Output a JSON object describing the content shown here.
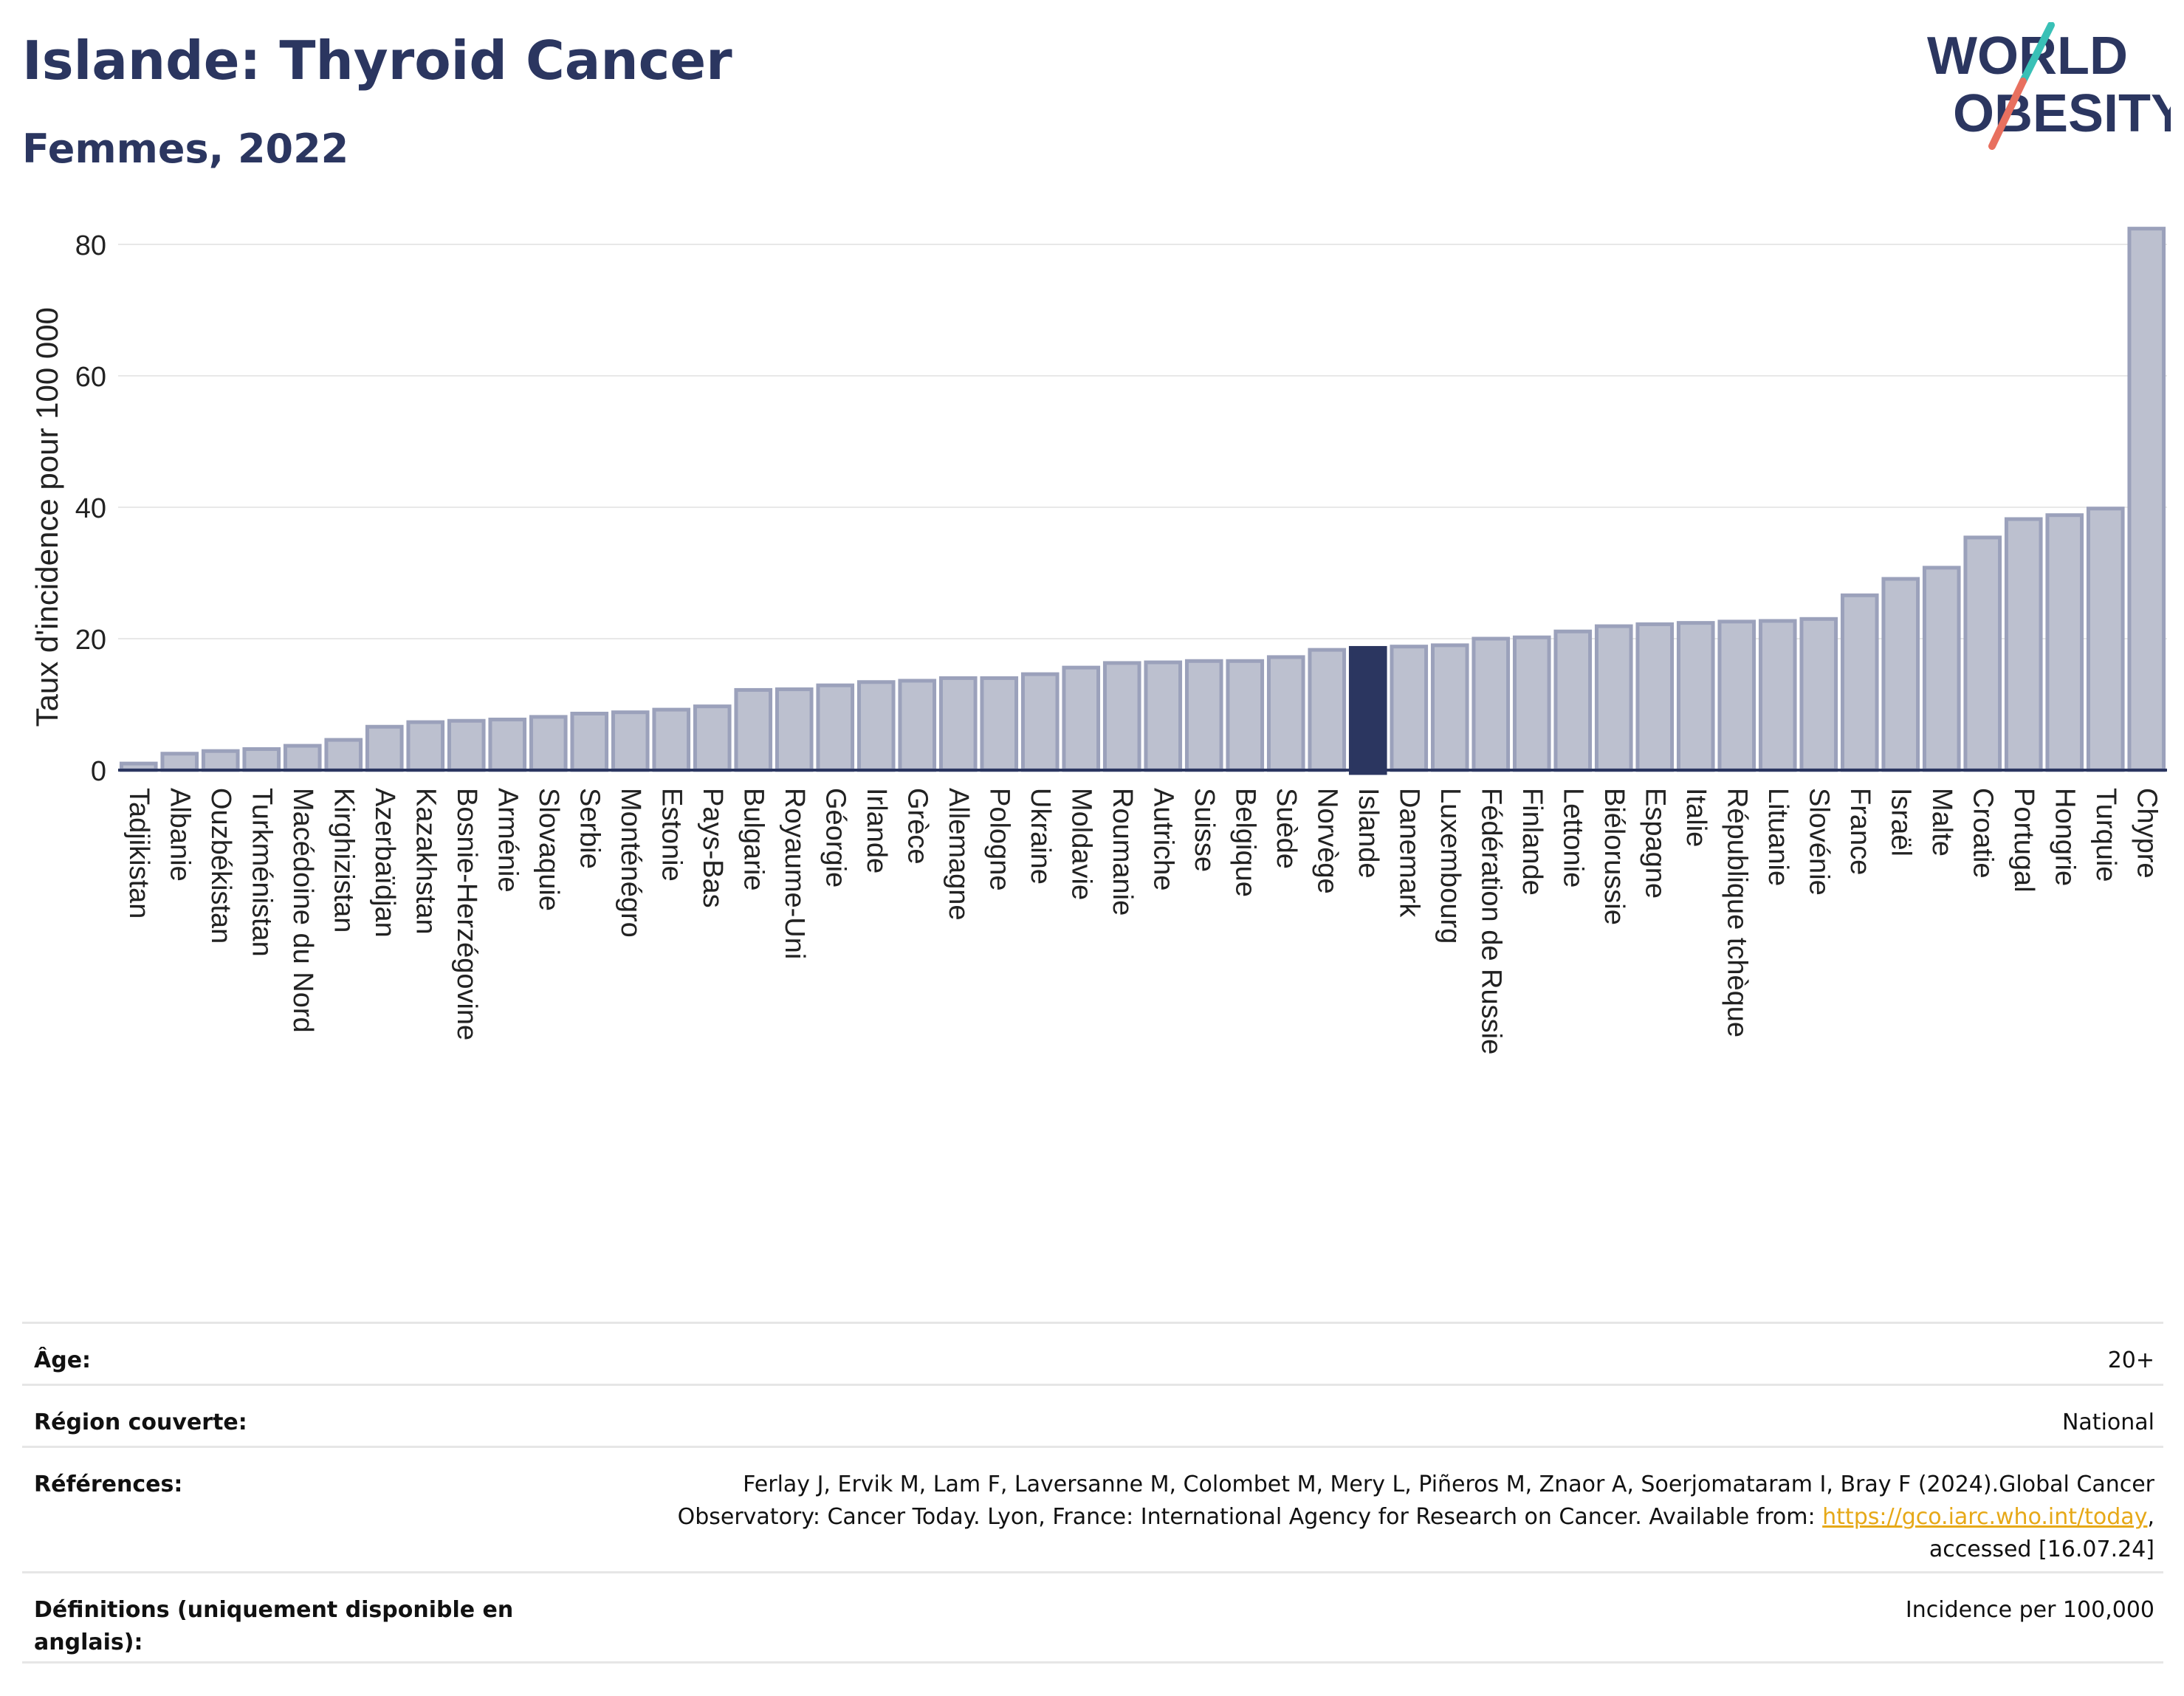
{
  "header": {
    "title": "Islande: Thyroid Cancer",
    "subtitle": "Femmes, 2022"
  },
  "logo": {
    "line1": "WORLD",
    "line2": "OBESITY",
    "accent_colors": [
      "#39c0b6",
      "#e8705f"
    ],
    "text_color": "#2b3660"
  },
  "chart_data": {
    "type": "bar",
    "ylabel": "Taux d'incidence pour 100 000",
    "xlabel": "",
    "ylim": [
      0,
      86
    ],
    "yticks": [
      0,
      20,
      40,
      60,
      80
    ],
    "grid": true,
    "highlight": "Islande",
    "colors": {
      "bar": "#bcc0cf",
      "bar_border": "#9ba1bb",
      "highlight": "#2b3660",
      "axis": "#2b3660",
      "grid": "#e8e8e8"
    },
    "categories": [
      "Tadjikistan",
      "Albanie",
      "Ouzbékistan",
      "Turkménistan",
      "Macédoine du Nord",
      "Kirghizistan",
      "Azerbaïdjan",
      "Kazakhstan",
      "Bosnie-Herzégovine",
      "Arménie",
      "Slovaquie",
      "Serbie",
      "Monténégro",
      "Estonie",
      "Pays-Bas",
      "Bulgarie",
      "Royaume-Uni",
      "Géorgie",
      "Irlande",
      "Grèce",
      "Allemagne",
      "Pologne",
      "Ukraine",
      "Moldavie",
      "Roumanie",
      "Autriche",
      "Suisse",
      "Belgique",
      "Suède",
      "Norvège",
      "Islande",
      "Danemark",
      "Luxembourg",
      "Fédération de Russie",
      "Finlande",
      "Lettonie",
      "Biélorussie",
      "Espagne",
      "Italie",
      "République tchèque",
      "Lituanie",
      "Slovénie",
      "France",
      "Israël",
      "Malte",
      "Croatie",
      "Portugal",
      "Hongrie",
      "Turquie",
      "Chypre"
    ],
    "values": [
      1.0,
      2.5,
      2.9,
      3.2,
      3.7,
      4.6,
      6.6,
      7.3,
      7.5,
      7.7,
      8.1,
      8.6,
      8.8,
      9.2,
      9.7,
      12.2,
      12.3,
      12.9,
      13.4,
      13.6,
      14.0,
      14.0,
      14.6,
      15.6,
      16.3,
      16.4,
      16.6,
      16.6,
      17.2,
      18.3,
      18.6,
      18.8,
      19.0,
      20.0,
      20.2,
      21.1,
      21.9,
      22.2,
      22.4,
      22.6,
      22.7,
      23.0,
      26.6,
      29.1,
      30.8,
      35.4,
      38.2,
      38.8,
      39.8,
      82.4
    ]
  },
  "meta": {
    "age_label": "Âge:",
    "age_value": "20+",
    "region_label": "Région couverte:",
    "region_value": "National",
    "references_label": "Références:",
    "references_line1": "Ferlay J, Ervik M, Lam F, Laversanne M, Colombet M, Mery L, Piñeros M, Znaor A, Soerjomataram I, Bray F (2024).Global Cancer",
    "references_line2_pre": "Observatory: Cancer Today. Lyon, France: International Agency for Research on Cancer. Available from: ",
    "references_link": "https://gco.iarc.who.int/today",
    "references_line2_post": ",",
    "references_line3": "accessed [16.07.24]",
    "definitions_label": "Définitions (uniquement disponible en anglais):",
    "definitions_value": "Incidence per 100,000"
  }
}
